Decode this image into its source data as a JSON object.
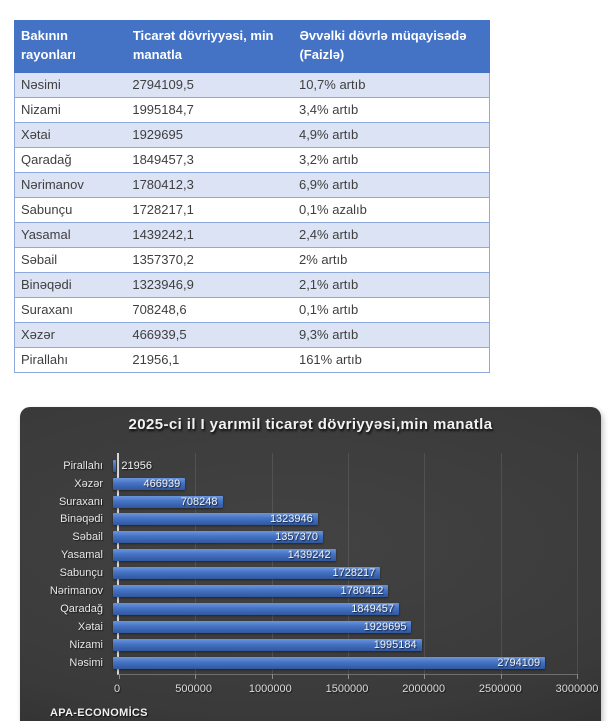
{
  "table": {
    "headers": [
      "Bakının rayonları",
      "Ticarət dövriyyəsi, min manatla",
      "Əvvəlki dövrlə müqayisədə (Faizlə)"
    ],
    "rows": [
      {
        "district": "Nəsimi",
        "turnover": "2794109,5",
        "change": "10,7% artıb"
      },
      {
        "district": "Nizami",
        "turnover": "1995184,7",
        "change": "3,4% artıb"
      },
      {
        "district": "Xətai",
        "turnover": "1929695",
        "change": "4,9% artıb"
      },
      {
        "district": "Qaradağ",
        "turnover": "1849457,3",
        "change": "3,2% artıb"
      },
      {
        "district": "Nərimanov",
        "turnover": "1780412,3",
        "change": "6,9% artıb"
      },
      {
        "district": "Sabunçu",
        "turnover": "1728217,1",
        "change": "0,1% azalıb"
      },
      {
        "district": "Yasamal",
        "turnover": "1439242,1",
        "change": "2,4% artıb"
      },
      {
        "district": "Səbail",
        "turnover": "1357370,2",
        "change": "2% artıb"
      },
      {
        "district": "Binəqədi",
        "turnover": "1323946,9",
        "change": "2,1% artıb"
      },
      {
        "district": "Suraxanı",
        "turnover": "708248,6",
        "change": "0,1% artıb"
      },
      {
        "district": "Xəzər",
        "turnover": "466939,5",
        "change": "9,3% artıb"
      },
      {
        "district": "Pirallahı",
        "turnover": "21956,1",
        "change": "161% artıb"
      }
    ],
    "colors": {
      "header_bg": "#4472C4",
      "alt_row_bg": "#DCE3F5",
      "border": "#8EA9DB"
    }
  },
  "chart_data": {
    "type": "bar",
    "orientation": "horizontal",
    "title": "2025-ci il I yarımil ticarət dövriyyəsi,min manatla",
    "categories": [
      "Pirallahı",
      "Xəzər",
      "Suraxanı",
      "Binəqədi",
      "Səbail",
      "Yasamal",
      "Sabunçu",
      "Nərimanov",
      "Qaradağ",
      "Xətai",
      "Nizami",
      "Nəsimi"
    ],
    "values": [
      21956,
      466939,
      708248,
      1323946,
      1357370,
      1439242,
      1728217,
      1780412,
      1849457,
      1929695,
      1995184,
      2794109
    ],
    "xlabel": "",
    "ylabel": "",
    "xlim": [
      0,
      3000000
    ],
    "x_ticks": [
      0,
      500000,
      1000000,
      1500000,
      2000000,
      2500000,
      3000000
    ],
    "x_tick_labels": [
      "0",
      "500000",
      "1000000",
      "1500000",
      "2000000",
      "2500000",
      "3000000"
    ],
    "grid": true,
    "legend": false,
    "bar_color": "#4472C4",
    "background_color": "#3a3a3a",
    "source_label": "APA-ECONOMİCS"
  }
}
